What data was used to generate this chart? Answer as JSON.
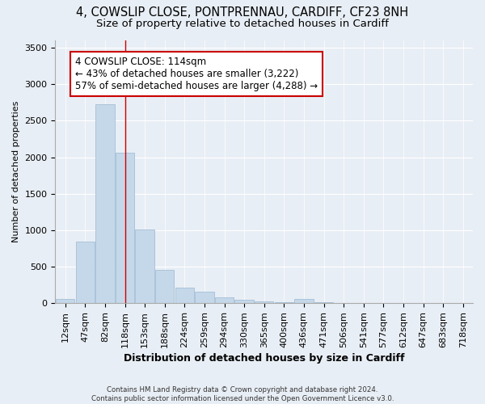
{
  "title1": "4, COWSLIP CLOSE, PONTPRENNAU, CARDIFF, CF23 8NH",
  "title2": "Size of property relative to detached houses in Cardiff",
  "xlabel": "Distribution of detached houses by size in Cardiff",
  "ylabel": "Number of detached properties",
  "categories": [
    "12sqm",
    "47sqm",
    "82sqm",
    "118sqm",
    "153sqm",
    "188sqm",
    "224sqm",
    "259sqm",
    "294sqm",
    "330sqm",
    "365sqm",
    "400sqm",
    "436sqm",
    "471sqm",
    "506sqm",
    "541sqm",
    "577sqm",
    "612sqm",
    "647sqm",
    "683sqm",
    "718sqm"
  ],
  "values": [
    55,
    840,
    2720,
    2060,
    1010,
    460,
    215,
    155,
    80,
    45,
    28,
    18,
    55,
    18,
    4,
    3,
    2,
    1,
    1,
    0,
    0
  ],
  "bar_color": "#c5d8ea",
  "bar_edge_color": "#9ab8d0",
  "vline_x": 3,
  "vline_color": "#cc0000",
  "annotation_text": "4 COWSLIP CLOSE: 114sqm\n← 43% of detached houses are smaller (3,222)\n57% of semi-detached houses are larger (4,288) →",
  "annotation_box_color": "#ffffff",
  "annotation_box_edge": "#cc0000",
  "ylim": [
    0,
    3600
  ],
  "yticks": [
    0,
    500,
    1000,
    1500,
    2000,
    2500,
    3000,
    3500
  ],
  "background_color": "#e8eef5",
  "grid_color": "#ffffff",
  "footer_text": "Contains HM Land Registry data © Crown copyright and database right 2024.\nContains public sector information licensed under the Open Government Licence v3.0.",
  "title1_fontsize": 10.5,
  "title2_fontsize": 9.5,
  "xlabel_fontsize": 9,
  "ylabel_fontsize": 8,
  "annot_fontsize": 8.5,
  "tick_fontsize": 8
}
